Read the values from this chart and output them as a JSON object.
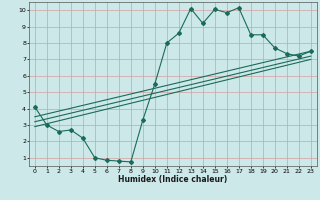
{
  "xlabel": "Humidex (Indice chaleur)",
  "bg_color": "#cce8e8",
  "grid_color": "#b0d4d4",
  "line_color": "#1a6b5a",
  "xlim": [
    -0.5,
    23.5
  ],
  "ylim": [
    0.5,
    10.5
  ],
  "xticks": [
    0,
    1,
    2,
    3,
    4,
    5,
    6,
    7,
    8,
    9,
    10,
    11,
    12,
    13,
    14,
    15,
    16,
    17,
    18,
    19,
    20,
    21,
    22,
    23
  ],
  "yticks": [
    1,
    2,
    3,
    4,
    5,
    6,
    7,
    8,
    9,
    10
  ],
  "line1_x": [
    0,
    1,
    2,
    3,
    4,
    5,
    6,
    7,
    8,
    9,
    10,
    11,
    12,
    13,
    14,
    15,
    16,
    17,
    18,
    19,
    20,
    21,
    22,
    23
  ],
  "line1_y": [
    4.1,
    3.0,
    2.6,
    2.7,
    2.2,
    1.0,
    0.85,
    0.8,
    0.75,
    3.3,
    5.5,
    8.0,
    8.6,
    10.1,
    9.2,
    10.05,
    9.85,
    10.15,
    8.5,
    8.5,
    7.7,
    7.35,
    7.2,
    7.5
  ],
  "line2_x": [
    0,
    23
  ],
  "line2_y": [
    3.5,
    7.5
  ],
  "line3_x": [
    0,
    23
  ],
  "line3_y": [
    3.2,
    7.2
  ],
  "line4_x": [
    0,
    23
  ],
  "line4_y": [
    2.9,
    7.0
  ]
}
